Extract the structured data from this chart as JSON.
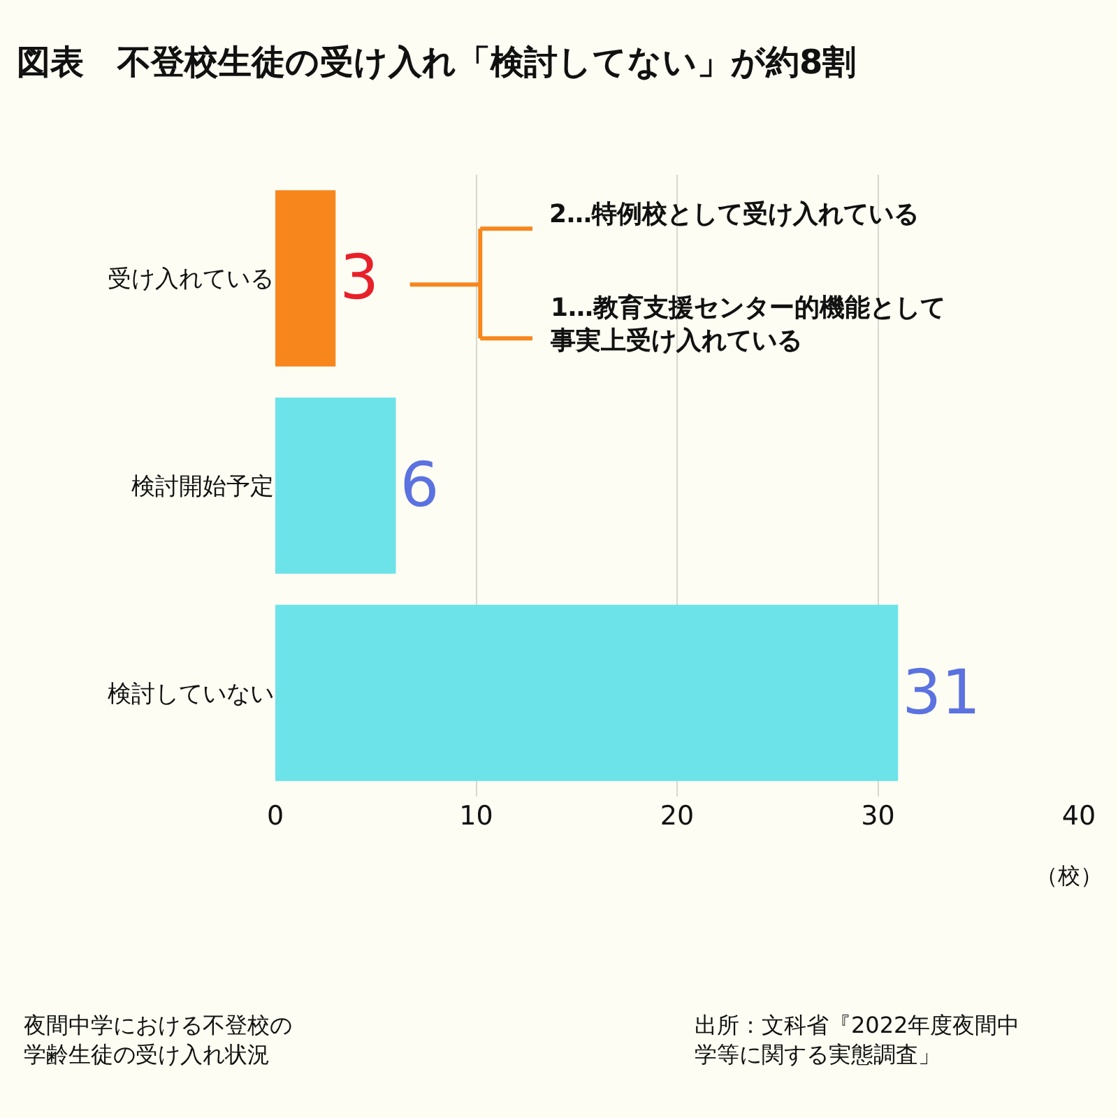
{
  "chart_data": {
    "type": "bar",
    "orientation": "horizontal",
    "title": "図表　不登校生徒の受け入れ「検討してない」が約8割",
    "categories": [
      "受け入れている",
      "検討開始予定",
      "検討していない"
    ],
    "values": [
      3,
      6,
      31
    ],
    "colors": [
      "#f7861c",
      "#6ce3e8",
      "#6ce3e8"
    ],
    "data_labels": true,
    "xlim": [
      0,
      40
    ],
    "xticks": [
      0,
      10,
      20,
      30,
      40
    ],
    "xlabel": "（校）",
    "grid": "x",
    "annotations": [
      "2…特例校として受け入れている",
      "1…教育支援センター的機能として事実上受け入れている",
      "夜間中学における不登校の学齢生徒の受け入れ状況",
      "出所：文科省『2022年度夜間中学等に関する実態調査」"
    ]
  }
}
